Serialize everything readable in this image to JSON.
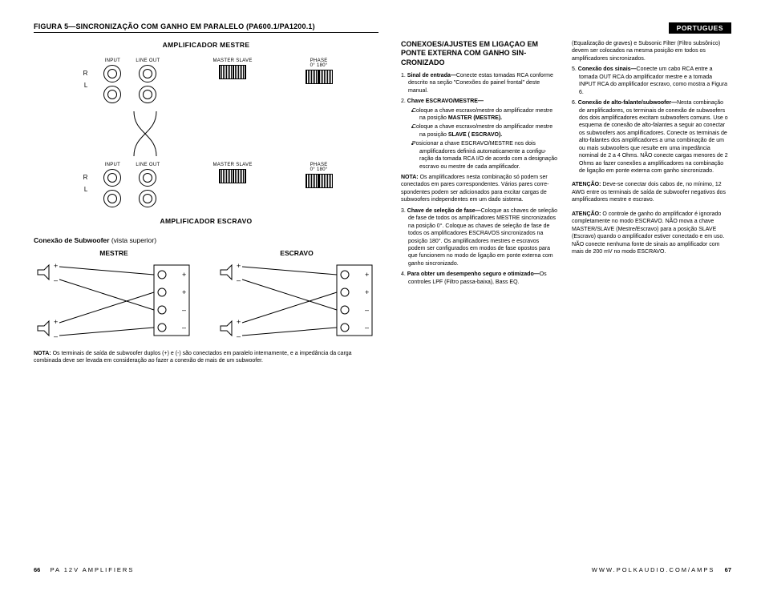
{
  "language_tag": "PORTUGUES",
  "figure": {
    "title": "FIGURA 5—SINCRONIZAÇÃO COM GANHO EM PARALELO (PA600.1/PA1200.1)",
    "amp_master_title": "AMPLIFICADOR MESTRE",
    "amp_slave_title": "AMPLIFICADOR ESCRAVO",
    "labels": {
      "R": "R",
      "L": "L",
      "INPUT": "INPUT",
      "LINEOUT": "LINE OUT",
      "MASTER_SLAVE": "MASTER  SLAVE",
      "PHASE": "PHASE",
      "PHASE_VALS": "0°        180°"
    }
  },
  "subwoofer_section": {
    "heading": "Conexão de Subwoofer",
    "heading_paren": "(vista superior)",
    "mestre": "MESTRE",
    "escravo": "ESCRAVO",
    "note_label": "NOTA:",
    "note_text": "Os terminais de saída de subwoofer duplos (+) e (-) são conectados em paralelo internamente, e a impedância da carga combinada deve ser levada em consideração ao fazer a conexão de mais de um subwoofer."
  },
  "right": {
    "section_title": "CONEXOES/AJUSTES EM LIGAÇAO EM PONTE EXTERNA COM GANHO SIN­CRONIZADO",
    "items": [
      {
        "n": "1.",
        "b": "Sinal de entrada—",
        "t": "Conecte estas tomadas RCA con­forme descrito na seção \"Conexões do painel frontal\" deste manual."
      },
      {
        "n": "2.",
        "b": "Chave ESCRAVO/MESTRE—",
        "t": "",
        "bullets": [
          "Coloque a chave escravo/mestre do amplificador mestre na posição <b>MASTER (MESTRE).</b>",
          "Coloque a chave escravo/mestre do amplificador mestre na posição <b>SLAVE ( ESCRAVO).</b>",
          "Posicionar a chave ESCRAVO/MESTRE nos dois amplificadores definirá automaticamente a configu­ração da tomada RCA I/O de acordo com a designação escravo ou mestre de cada amplificador."
        ]
      },
      {
        "notalabel": "NOTA:",
        "notatext": "Os amplificadores nesta combinação só podem ser conectados em pares correspondentes. Vários pares corre­spondentes podem ser adicionados para excitar cargas de subwoofers independentes em um dado sistema."
      },
      {
        "n": "3.",
        "b": "Chave de seleção de fase—",
        "t": "Coloque as chaves de seleção de fase de todos os amplificadores MESTRE sincronizados na posição 0°. Coloque as chaves de seleção de fase de todos os amplificadores ESCRAVOS sincronizados na posição 180°. Os amplificadores mestres e escravos podem ser configurados em modos de fase opostos para que funcionem no modo de ligação em ponte externa com ganho sincronizado."
      },
      {
        "n": "4.",
        "b": "Para obter um desempenho seguro e otimizado—",
        "t": "Os controles LPF (Filtro passa-baixa), Bass EQ."
      }
    ],
    "col2_lead": "(Equalização de graves) e Subsonic Filter (Filtro sub­sônico) devem ser colocados na mesma posição em todos os amplificadores sincronizados.",
    "items2": [
      {
        "n": "5.",
        "b": "Conexão dos sinais—",
        "t": "Conecte um cabo RCA entre a tomada OUT RCA do amplificador mestre e a tomada INPUT RCA do amplificador escravo, como mostra a Figura 6."
      },
      {
        "n": "6.",
        "b": "Conexão de alto-falante/subwoofer—",
        "t": "Nesta combi­nação de amplificadores, os terminais de conexão de subwoofers dos dois amplificadores excitam subwoofers comuns. Use o esquema de conexão de alto-falantes a seguir ao conectar os subwoofers aos amplificadores. Conecte os terminais de alto-falantes dos amplificadores a uma combinação de um ou mais subwoofers que resulte em uma impedância nominal de 2 a 4 Ohms. NÃO conecte cargas menores de 2 Ohms ao fazer conexões a amplificadores na combinação de ligação em ponte externa com ganho sincronizado."
      }
    ],
    "atn1_label": "ATENÇÃO:",
    "atn1": "Deve-se conectar dois cabos de, no mínimo, 12 AWG entre os terminais de saída de subwoofer negativos dos amplificadores mestre e escravo.",
    "atn2_label": "ATENÇÃO:",
    "atn2": "O controle de ganho do amplificador é ignorado completamente no modo ESCRAVO. NÃO mova a chave MASTER/SLAVE (Mestre/Escravo) para a posição SLAVE (Escravo) quando o amplificador estiver conectado e em uso. NÃO conecte nenhuma fonte de sinais ao amplificador com mais de 200 mV no modo ESCRAVO."
  },
  "footer": {
    "left_page": "66",
    "left_text": "PA 12V AMPLIFIERS",
    "right_text": "WWW.POLKAUDIO.COM/AMPS",
    "right_page": "67"
  },
  "colors": {
    "text": "#000000",
    "bg": "#ffffff"
  }
}
